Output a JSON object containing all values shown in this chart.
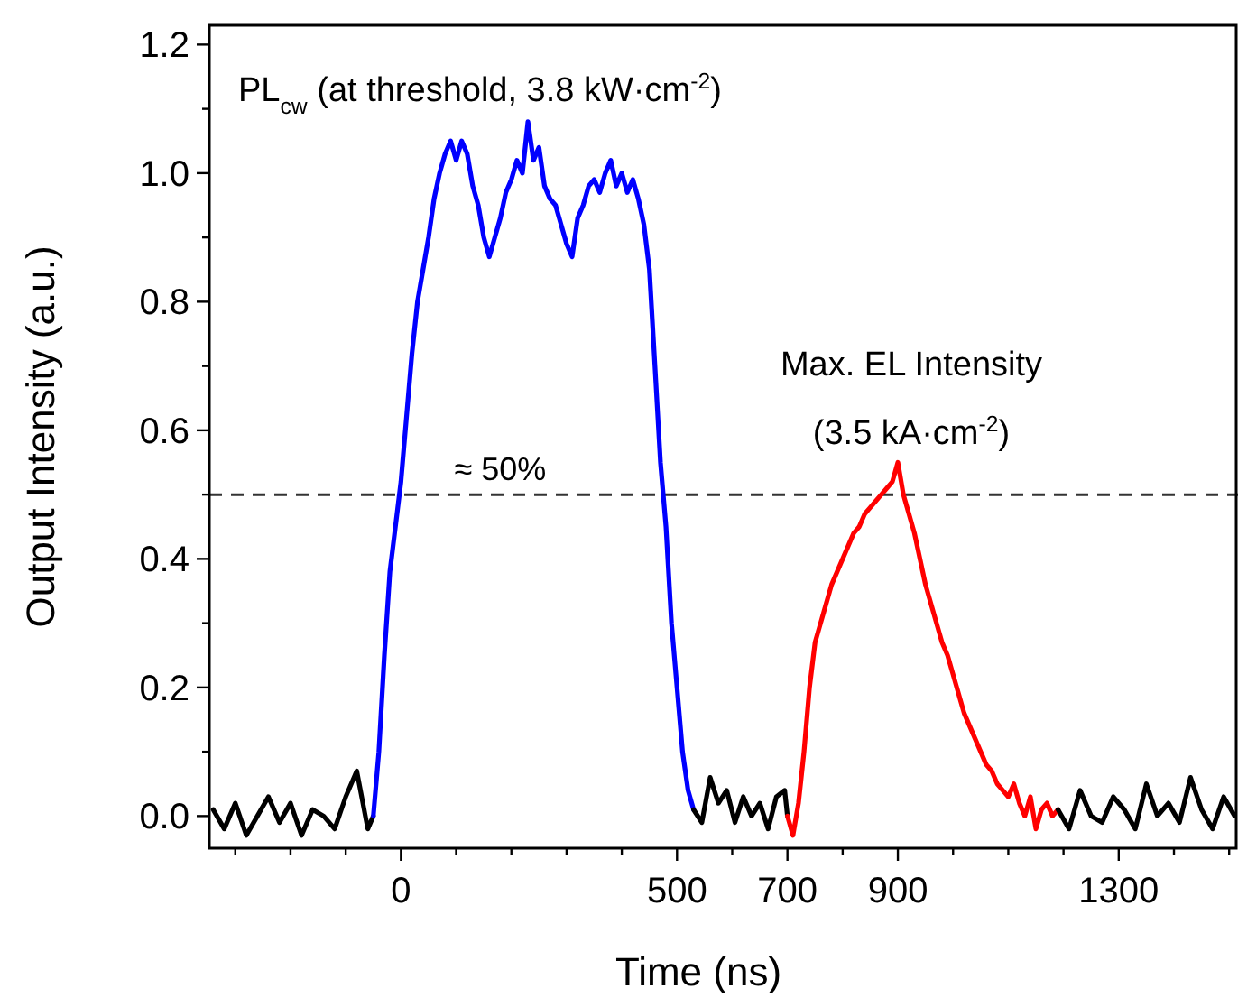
{
  "chart_data": {
    "type": "line",
    "xlabel": "Time (ns)",
    "ylabel": "Output Intensity (a.u.)",
    "xlim": [
      -347,
      1516
    ],
    "ylim": [
      -0.05,
      1.23
    ],
    "xticks": [
      {
        "value": -300,
        "label": null
      },
      {
        "value": -200,
        "label": null
      },
      {
        "value": -100,
        "label": null
      },
      0,
      {
        "value": 100,
        "label": null
      },
      {
        "value": 200,
        "label": null
      },
      {
        "value": 300,
        "label": null
      },
      {
        "value": 400,
        "label": null
      },
      500,
      {
        "value": 600,
        "label": null
      },
      700,
      {
        "value": 800,
        "label": null
      },
      900,
      {
        "value": 1000,
        "label": null
      },
      {
        "value": 1100,
        "label": null
      },
      {
        "value": 1200,
        "label": null
      },
      1300,
      {
        "value": 1400,
        "label": null
      },
      {
        "value": 1500,
        "label": null
      }
    ],
    "yticks": [
      {
        "value": 0,
        "label": "0.0"
      },
      {
        "value": 0.1,
        "label": null
      },
      {
        "value": 0.2,
        "label": "0.2"
      },
      {
        "value": 0.3,
        "label": null
      },
      {
        "value": 0.4,
        "label": "0.4"
      },
      {
        "value": 0.5,
        "label": null
      },
      {
        "value": 0.6,
        "label": "0.6"
      },
      {
        "value": 0.7,
        "label": null
      },
      {
        "value": 0.8,
        "label": "0.8"
      },
      {
        "value": 0.9,
        "label": null
      },
      {
        "value": 1.0,
        "label": "1.0"
      },
      {
        "value": 1.1,
        "label": null
      },
      {
        "value": 1.2,
        "label": "1.2"
      }
    ],
    "grid": false,
    "marker": "none",
    "line_style": "solid",
    "series": [
      {
        "color": "#000000",
        "x": [
          -340,
          -320,
          -300,
          -280,
          -260,
          -240,
          -220,
          -200,
          -180,
          -160,
          -140,
          -120,
          -100,
          -80,
          -60,
          -50
        ],
        "values": [
          0.01,
          -0.02,
          0.02,
          -0.03,
          0.0,
          0.03,
          -0.01,
          0.02,
          -0.03,
          0.01,
          0.0,
          -0.02,
          0.03,
          0.07,
          -0.02,
          0.0
        ]
      },
      {
        "color": "#0000ff",
        "x": [
          -50,
          -40,
          -30,
          -20,
          -10,
          0,
          10,
          20,
          30,
          40,
          50,
          60,
          70,
          80,
          90,
          100,
          110,
          120,
          130,
          140,
          150,
          160,
          170,
          180,
          190,
          200,
          210,
          220,
          230,
          240,
          250,
          260,
          270,
          280,
          290,
          300,
          310,
          320,
          330,
          340,
          350,
          360,
          370,
          380,
          390,
          400,
          410,
          420,
          430,
          440,
          450,
          460,
          470,
          480,
          490,
          500,
          510,
          520,
          530
        ],
        "values": [
          0.0,
          0.1,
          0.25,
          0.38,
          0.45,
          0.52,
          0.62,
          0.72,
          0.8,
          0.85,
          0.9,
          0.96,
          1.0,
          1.03,
          1.05,
          1.02,
          1.05,
          1.03,
          0.98,
          0.95,
          0.9,
          0.87,
          0.9,
          0.93,
          0.97,
          0.99,
          1.02,
          1.0,
          1.08,
          1.02,
          1.04,
          0.98,
          0.96,
          0.95,
          0.92,
          0.89,
          0.87,
          0.93,
          0.95,
          0.98,
          0.99,
          0.97,
          1.0,
          1.02,
          0.98,
          1.0,
          0.97,
          0.99,
          0.96,
          0.92,
          0.85,
          0.7,
          0.55,
          0.45,
          0.3,
          0.2,
          0.1,
          0.04,
          0.01
        ]
      },
      {
        "color": "#000000",
        "x": [
          530,
          545,
          560,
          575,
          590,
          605,
          620,
          635,
          650,
          665,
          680,
          695,
          700
        ],
        "values": [
          0.01,
          -0.01,
          0.06,
          0.02,
          0.04,
          -0.01,
          0.03,
          0.0,
          0.02,
          -0.02,
          0.03,
          0.04,
          0.0
        ]
      },
      {
        "color": "#ff0000",
        "x": [
          700,
          710,
          720,
          730,
          740,
          750,
          760,
          770,
          780,
          790,
          800,
          810,
          820,
          830,
          840,
          850,
          860,
          870,
          880,
          890,
          900,
          910,
          920,
          930,
          940,
          950,
          960,
          970,
          980,
          990,
          1000,
          1010,
          1020,
          1030,
          1040,
          1050,
          1060,
          1070,
          1080,
          1090,
          1100,
          1110,
          1120,
          1130,
          1140,
          1150,
          1160,
          1170,
          1180,
          1190
        ],
        "values": [
          0.0,
          -0.03,
          0.02,
          0.1,
          0.2,
          0.27,
          0.3,
          0.33,
          0.36,
          0.38,
          0.4,
          0.42,
          0.44,
          0.45,
          0.47,
          0.48,
          0.49,
          0.5,
          0.51,
          0.52,
          0.55,
          0.5,
          0.47,
          0.44,
          0.4,
          0.36,
          0.33,
          0.3,
          0.27,
          0.25,
          0.22,
          0.19,
          0.16,
          0.14,
          0.12,
          0.1,
          0.08,
          0.07,
          0.05,
          0.04,
          0.03,
          0.05,
          0.02,
          0.0,
          0.03,
          -0.02,
          0.01,
          0.02,
          0.0,
          0.01
        ]
      },
      {
        "color": "#000000",
        "x": [
          1190,
          1210,
          1230,
          1250,
          1270,
          1290,
          1310,
          1330,
          1350,
          1370,
          1390,
          1410,
          1430,
          1450,
          1470,
          1490,
          1510
        ],
        "values": [
          0.01,
          -0.02,
          0.04,
          0.0,
          -0.01,
          0.03,
          0.01,
          -0.02,
          0.05,
          0.0,
          0.02,
          -0.01,
          0.06,
          0.01,
          -0.02,
          0.03,
          0.0
        ]
      }
    ],
    "ref_lines": [
      {
        "axis": "y",
        "value": 0.5,
        "label": "≈ 50%",
        "color": "#333333",
        "line_style": "dashed"
      }
    ],
    "annotations": [
      "PL$_{cw}$ (at threshold, 3.8 kW·cm$^{-2}$)",
      "Max. EL Intensity",
      "(3.5 kA·cm$^{-2}$)"
    ]
  }
}
